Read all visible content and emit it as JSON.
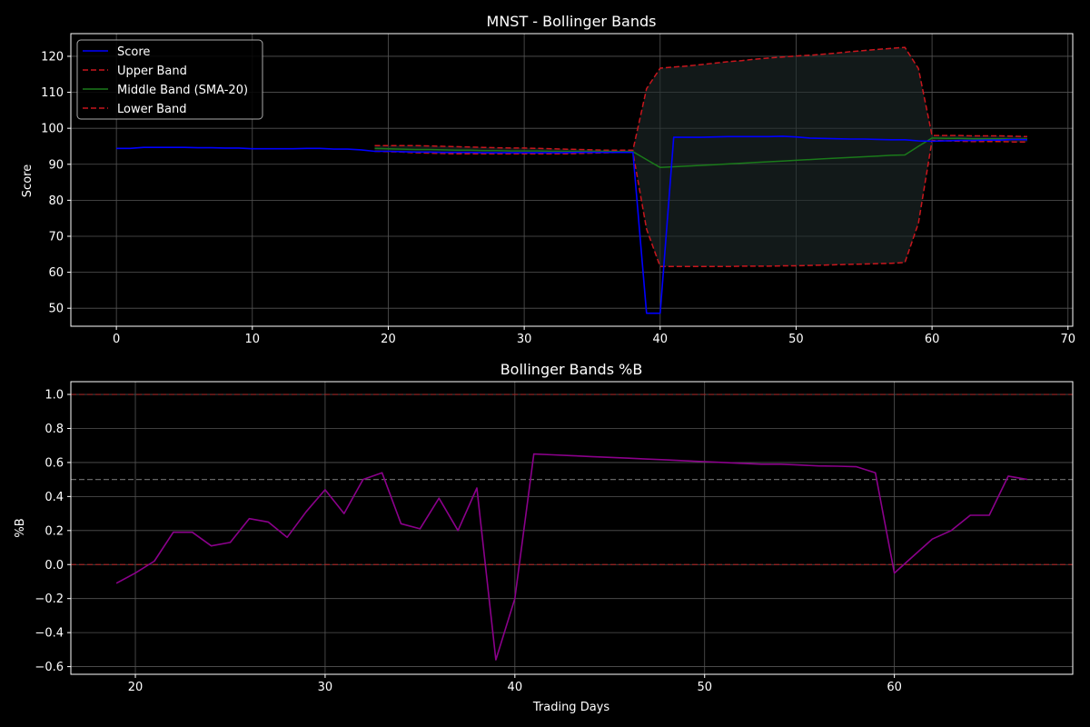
{
  "colors": {
    "background": "#000000",
    "axes_edge": "#ffffff",
    "grid": "#555555",
    "score": "#0000ff",
    "upper": "#c8161d",
    "middle": "#1a7a1a",
    "lower": "#c8161d",
    "fill": "#1e2a2a",
    "pctb": "#8b008b",
    "ref_red": "#b22222",
    "ref_gray": "#777777"
  },
  "chart_data": [
    {
      "type": "line",
      "title": "MNST - Bollinger Bands",
      "xlabel": "",
      "ylabel": "Score",
      "xlim": [
        -3.35,
        70.35
      ],
      "ylim": [
        45.0,
        126.3
      ],
      "xticks": [
        0,
        10,
        20,
        30,
        40,
        50,
        60,
        70
      ],
      "yticks": [
        50,
        60,
        70,
        80,
        90,
        100,
        110,
        120
      ],
      "grid": true,
      "legend_position": "upper-left",
      "band_fill": true,
      "series": [
        {
          "name": "Score",
          "style": "solid",
          "x": [
            0,
            1,
            2,
            3,
            4,
            5,
            6,
            7,
            8,
            9,
            10,
            11,
            12,
            13,
            14,
            15,
            16,
            17,
            18,
            19,
            20,
            21,
            22,
            23,
            24,
            25,
            26,
            27,
            28,
            29,
            30,
            31,
            32,
            33,
            34,
            35,
            36,
            37,
            38,
            39,
            40,
            41,
            42,
            43,
            44,
            45,
            46,
            47,
            48,
            49,
            50,
            51,
            52,
            53,
            54,
            55,
            56,
            57,
            58,
            59,
            60,
            61,
            62,
            63,
            64,
            65,
            66,
            67
          ],
          "values": [
            94.4,
            94.4,
            94.7,
            94.7,
            94.7,
            94.7,
            94.6,
            94.6,
            94.5,
            94.5,
            94.3,
            94.3,
            94.3,
            94.3,
            94.4,
            94.4,
            94.2,
            94.2,
            94.0,
            93.6,
            93.6,
            93.5,
            93.4,
            93.4,
            93.3,
            93.3,
            93.3,
            93.2,
            93.2,
            93.2,
            93.2,
            93.2,
            93.2,
            93.2,
            93.3,
            93.3,
            93.3,
            93.3,
            93.3,
            48.6,
            48.6,
            97.5,
            97.5,
            97.5,
            97.6,
            97.7,
            97.7,
            97.7,
            97.7,
            97.8,
            97.6,
            97.3,
            97.2,
            97.1,
            97.0,
            97.0,
            96.9,
            96.8,
            96.8,
            96.5,
            96.4,
            96.5,
            96.6,
            96.6,
            96.7,
            96.7,
            96.9,
            96.8
          ]
        },
        {
          "name": "Upper Band",
          "style": "dashed",
          "x": [
            19,
            20,
            21,
            22,
            23,
            24,
            25,
            26,
            27,
            28,
            29,
            30,
            31,
            32,
            33,
            34,
            35,
            36,
            37,
            38,
            39,
            40,
            41,
            42,
            43,
            44,
            45,
            46,
            47,
            48,
            49,
            50,
            51,
            52,
            53,
            54,
            55,
            56,
            57,
            58,
            59,
            60,
            61,
            62,
            63,
            64,
            65,
            66,
            67
          ],
          "values": [
            95.2,
            95.2,
            95.2,
            95.2,
            95.1,
            95.0,
            94.9,
            94.8,
            94.7,
            94.6,
            94.5,
            94.5,
            94.4,
            94.3,
            94.2,
            94.1,
            94.0,
            93.9,
            93.9,
            93.9,
            111.0,
            116.7,
            117.0,
            117.3,
            117.7,
            118.1,
            118.5,
            118.8,
            119.2,
            119.5,
            119.8,
            120.1,
            120.3,
            120.6,
            120.9,
            121.3,
            121.6,
            121.9,
            122.2,
            122.5,
            116.6,
            98.0,
            98.0,
            98.0,
            97.9,
            97.9,
            97.9,
            97.8,
            97.7
          ]
        },
        {
          "name": "Middle Band (SMA-20)",
          "style": "solid",
          "x": [
            19,
            20,
            21,
            22,
            23,
            24,
            25,
            26,
            27,
            28,
            29,
            30,
            31,
            32,
            33,
            34,
            35,
            36,
            37,
            38,
            39,
            40,
            41,
            42,
            43,
            44,
            45,
            46,
            47,
            48,
            49,
            50,
            51,
            52,
            53,
            54,
            55,
            56,
            57,
            58,
            59,
            60,
            61,
            62,
            63,
            64,
            65,
            66,
            67
          ],
          "values": [
            94.4,
            94.3,
            94.2,
            94.1,
            94.1,
            94.0,
            93.9,
            93.9,
            93.8,
            93.8,
            93.7,
            93.7,
            93.7,
            93.6,
            93.6,
            93.6,
            93.6,
            93.6,
            93.5,
            93.5,
            91.3,
            89.1,
            89.3,
            89.5,
            89.7,
            89.9,
            90.1,
            90.3,
            90.5,
            90.7,
            90.9,
            91.1,
            91.3,
            91.5,
            91.7,
            91.9,
            92.1,
            92.3,
            92.5,
            92.6,
            95.0,
            97.3,
            97.2,
            97.2,
            97.1,
            97.1,
            97.1,
            97.0,
            97.0
          ]
        },
        {
          "name": "Lower Band",
          "style": "dashed",
          "x": [
            19,
            20,
            21,
            22,
            23,
            24,
            25,
            26,
            27,
            28,
            29,
            30,
            31,
            32,
            33,
            34,
            35,
            36,
            37,
            38,
            39,
            40,
            41,
            42,
            43,
            44,
            45,
            46,
            47,
            48,
            49,
            50,
            51,
            52,
            53,
            54,
            55,
            56,
            57,
            58,
            59,
            60,
            61,
            62,
            63,
            64,
            65,
            66,
            67
          ],
          "values": [
            93.6,
            93.5,
            93.4,
            93.2,
            93.1,
            93.0,
            92.9,
            92.9,
            92.9,
            92.9,
            92.9,
            92.9,
            92.9,
            92.9,
            92.9,
            93.0,
            93.1,
            93.2,
            93.3,
            93.3,
            72.0,
            61.6,
            61.6,
            61.6,
            61.6,
            61.6,
            61.6,
            61.7,
            61.7,
            61.7,
            61.8,
            61.8,
            61.9,
            62.0,
            62.1,
            62.2,
            62.3,
            62.4,
            62.5,
            62.7,
            73.6,
            96.6,
            96.5,
            96.4,
            96.3,
            96.3,
            96.3,
            96.2,
            96.2
          ]
        }
      ]
    },
    {
      "type": "line",
      "title": "Bollinger Bands %B",
      "xlabel": "Trading Days",
      "ylabel": "%B",
      "xlim": [
        16.6,
        69.4
      ],
      "ylim": [
        -0.645,
        1.075
      ],
      "xticks": [
        20,
        30,
        40,
        50,
        60
      ],
      "yticks": [
        -0.6,
        -0.4,
        -0.2,
        0.0,
        0.2,
        0.4,
        0.6,
        0.8,
        1.0
      ],
      "grid": true,
      "reference_lines": [
        {
          "y": 1.0,
          "style": "dashed",
          "color": "red"
        },
        {
          "y": 0.5,
          "style": "dashed",
          "color": "gray"
        },
        {
          "y": 0.0,
          "style": "dashed",
          "color": "red"
        }
      ],
      "series": [
        {
          "name": "%B",
          "style": "solid",
          "x": [
            19,
            20,
            21,
            22,
            23,
            24,
            25,
            26,
            27,
            28,
            29,
            30,
            31,
            32,
            33,
            34,
            35,
            36,
            37,
            38,
            39,
            40,
            41,
            42,
            43,
            44,
            45,
            46,
            47,
            48,
            49,
            50,
            51,
            52,
            53,
            54,
            55,
            56,
            57,
            58,
            59,
            60,
            61,
            62,
            63,
            64,
            65,
            66,
            67
          ],
          "values": [
            -0.11,
            -0.05,
            0.02,
            0.19,
            0.19,
            0.11,
            0.13,
            0.27,
            0.25,
            0.16,
            0.31,
            0.44,
            0.3,
            0.5,
            0.54,
            0.24,
            0.21,
            0.39,
            0.2,
            0.45,
            -0.56,
            -0.2,
            0.65,
            0.645,
            0.64,
            0.635,
            0.63,
            0.625,
            0.62,
            0.615,
            0.61,
            0.605,
            0.6,
            0.595,
            0.59,
            0.59,
            0.585,
            0.58,
            0.578,
            0.575,
            0.54,
            -0.05,
            0.05,
            0.15,
            0.2,
            0.29,
            0.29,
            0.52,
            0.5
          ]
        }
      ]
    }
  ]
}
